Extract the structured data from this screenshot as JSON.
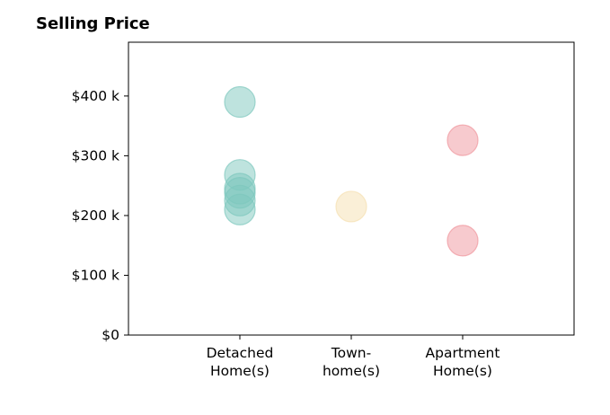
{
  "chart_data": {
    "type": "scatter",
    "title": "Selling Price",
    "xlabel": "",
    "ylabel": "",
    "categories": [
      [
        "Detached",
        "Home(s)"
      ],
      [
        "Town-",
        "home(s)"
      ],
      [
        "Apartment",
        "Home(s)"
      ]
    ],
    "xlim": [
      0,
      4
    ],
    "ylim": [
      0,
      490000
    ],
    "yticks": [
      {
        "value": 0,
        "label": "$0"
      },
      {
        "value": 100000,
        "label": "$100 k"
      },
      {
        "value": 200000,
        "label": "$200 k"
      },
      {
        "value": 300000,
        "label": "$300 k"
      },
      {
        "value": 400000,
        "label": "$400 k"
      }
    ],
    "grid": false,
    "series": [
      {
        "category": 1,
        "color": "#7ec8bd",
        "values": [
          390000,
          268000,
          245000,
          238000,
          225000,
          210000
        ]
      },
      {
        "category": 2,
        "color": "#f5dfb0",
        "values": [
          215000
        ]
      },
      {
        "category": 3,
        "color": "#f0959d",
        "values": [
          326000,
          158000
        ]
      }
    ]
  }
}
